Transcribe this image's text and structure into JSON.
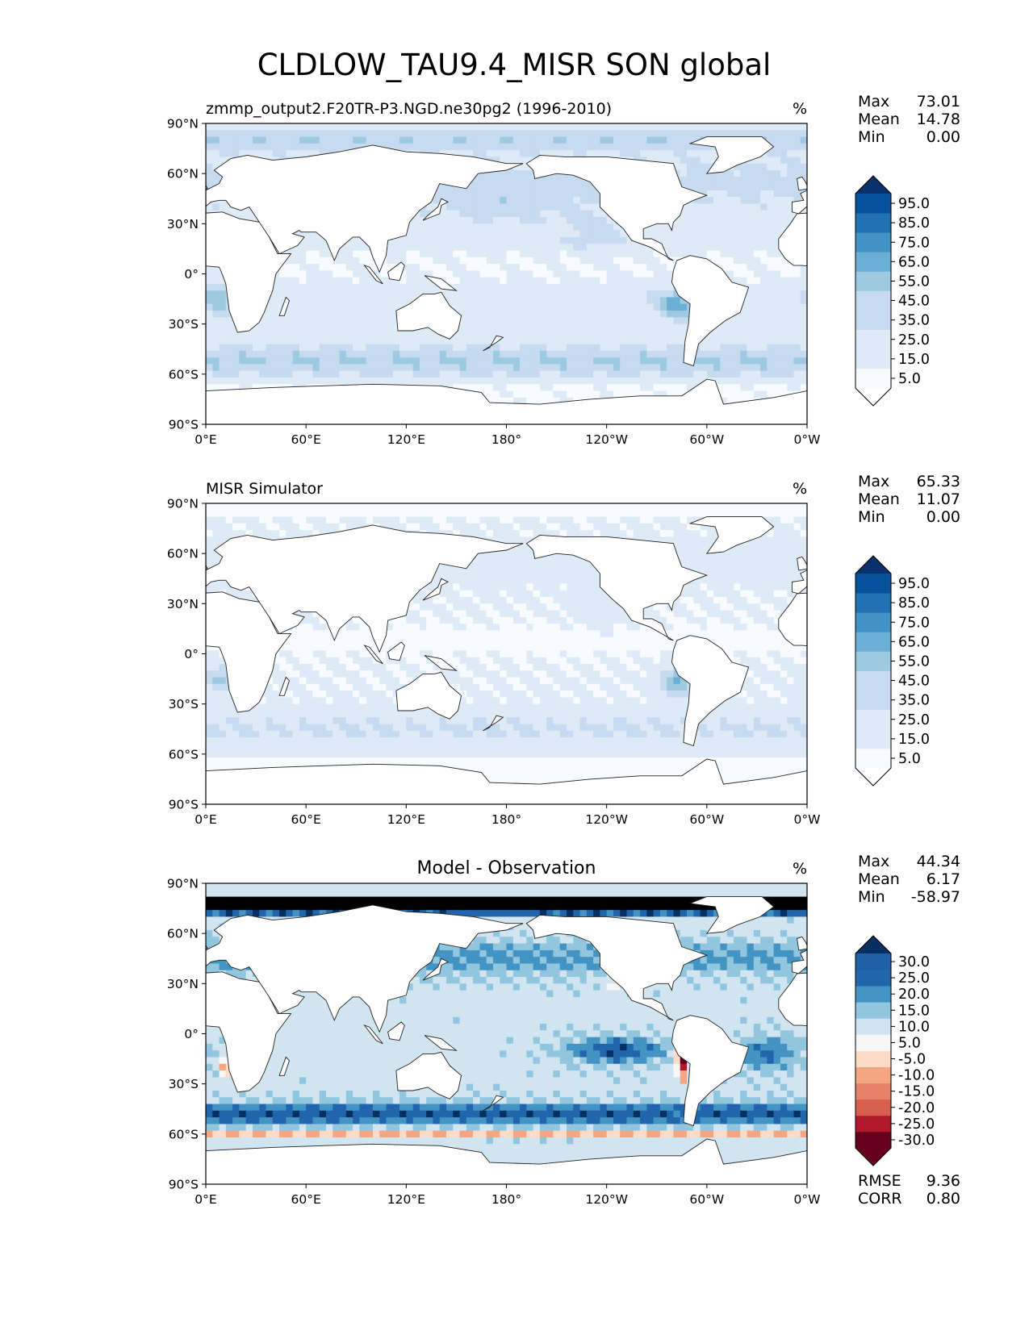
{
  "figure": {
    "title": "CLDLOW_TAU9.4_MISR SON global"
  },
  "axes": {
    "lat_ticks": [
      "90°N",
      "60°N",
      "30°N",
      "0°",
      "30°S",
      "60°S",
      "90°S"
    ],
    "lon_ticks": [
      "0°E",
      "60°E",
      "120°E",
      "180°",
      "120°W",
      "60°W",
      "0°W"
    ]
  },
  "colors": {
    "seq": [
      "#f7fbff",
      "#deebf7",
      "#c6dbef",
      "#9ecae1",
      "#6baed6",
      "#4292c6",
      "#2171b5",
      "#08519c",
      "#08306b"
    ],
    "div": [
      "#67001f",
      "#b2182b",
      "#d6604d",
      "#f4a582",
      "#fddbc7",
      "#f7f7f7",
      "#d1e5f0",
      "#92c5de",
      "#4393c3",
      "#2166ac",
      "#053061"
    ],
    "land": "#ffffff",
    "coast": "#222222"
  },
  "chart_data": [
    {
      "type": "heatmap",
      "panel": "test",
      "left_title": "zmmp_output2.F20TR-P3.NGD.ne30pg2 (1996-2010)",
      "center_title": "",
      "units": "%",
      "stats": [
        {
          "label": "Max",
          "value": "73.01"
        },
        {
          "label": "Mean",
          "value": "14.78"
        },
        {
          "label": "Min",
          "value": "0.00"
        }
      ],
      "colorbar_ticks": [
        "95.0",
        "85.0",
        "75.0",
        "65.0",
        "55.0",
        "45.0",
        "35.0",
        "25.0",
        "15.0",
        "5.0"
      ],
      "xlim": [
        0,
        360
      ],
      "ylim": [
        -90,
        90
      ]
    },
    {
      "type": "heatmap",
      "panel": "reference",
      "left_title": "MISR Simulator",
      "center_title": "",
      "units": "%",
      "stats": [
        {
          "label": "Max",
          "value": "65.33"
        },
        {
          "label": "Mean",
          "value": "11.07"
        },
        {
          "label": "Min",
          "value": "0.00"
        }
      ],
      "colorbar_ticks": [
        "95.0",
        "85.0",
        "75.0",
        "65.0",
        "55.0",
        "45.0",
        "35.0",
        "25.0",
        "15.0",
        "5.0"
      ],
      "xlim": [
        0,
        360
      ],
      "ylim": [
        -90,
        90
      ]
    },
    {
      "type": "heatmap",
      "panel": "difference",
      "left_title": "",
      "center_title": "Model - Observation",
      "units": "%",
      "stats": [
        {
          "label": "Max",
          "value": "44.34"
        },
        {
          "label": "Mean",
          "value": "6.17"
        },
        {
          "label": "Min",
          "value": "-58.97"
        }
      ],
      "colorbar_ticks": [
        "30.0",
        "25.0",
        "20.0",
        "15.0",
        "10.0",
        "5.0",
        "-5.0",
        "-10.0",
        "-15.0",
        "-20.0",
        "-25.0",
        "-30.0"
      ],
      "footer_stats": [
        {
          "label": "RMSE",
          "value": "9.36"
        },
        {
          "label": "CORR",
          "value": "0.80"
        }
      ],
      "xlim": [
        0,
        360
      ],
      "ylim": [
        -90,
        90
      ]
    }
  ]
}
